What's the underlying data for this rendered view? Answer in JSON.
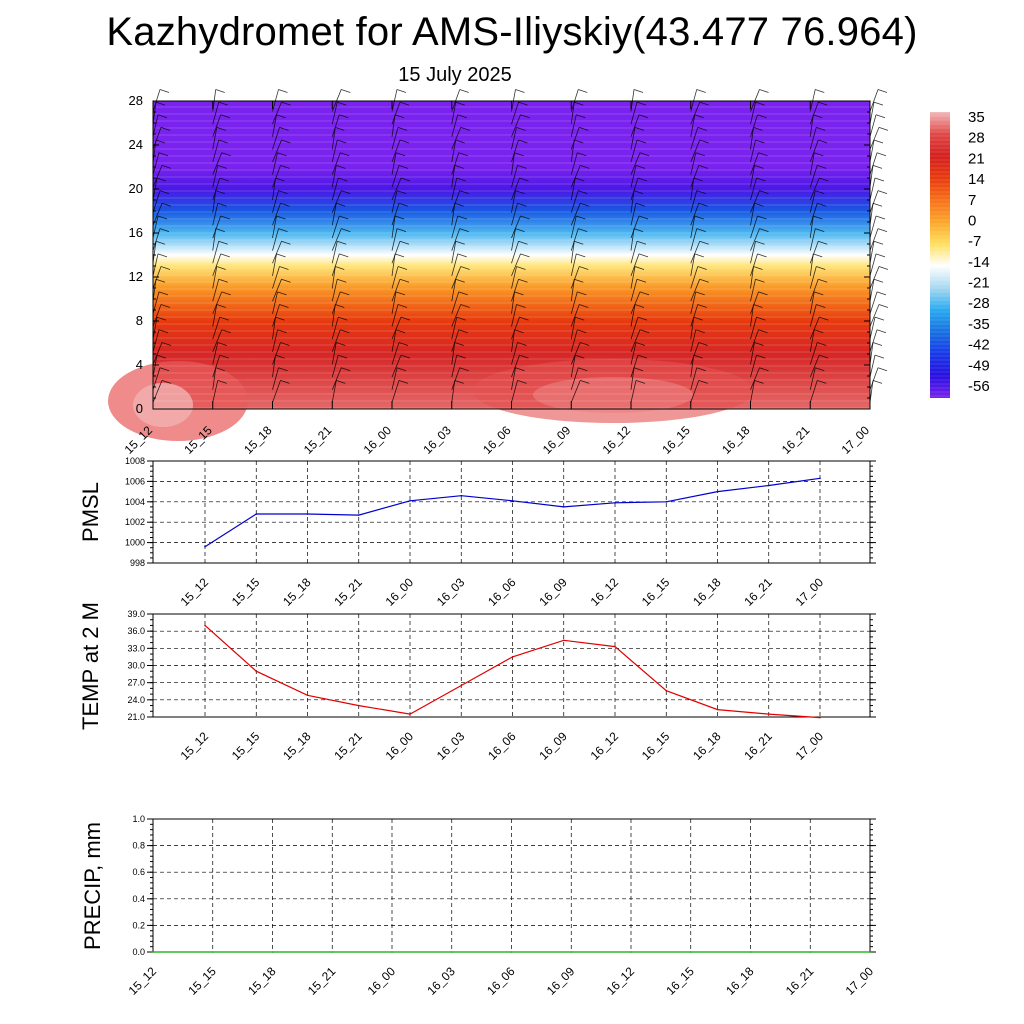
{
  "header": {
    "title": "Kazhydromet for AMS-Iliyskiy(43.477 76.964)",
    "date": "15 July 2025"
  },
  "chart_data": [
    {
      "type": "heatmap",
      "title": "",
      "xlabel": "",
      "ylabel": "",
      "x": [
        "15_12",
        "15_15",
        "15_18",
        "15_21",
        "16_00",
        "16_03",
        "16_06",
        "16_09",
        "16_12",
        "16_15",
        "16_18",
        "16_21",
        "17_00"
      ],
      "yticks": [
        0,
        4,
        8,
        12,
        16,
        20,
        24,
        28
      ],
      "ylim": [
        0,
        28
      ],
      "colorbar": {
        "labels": [
          "35",
          "28",
          "21",
          "14",
          "7",
          "0",
          "-7",
          "-14",
          "-21",
          "-28",
          "-35",
          "-42",
          "-49",
          "-56"
        ],
        "colors": [
          "#f2b8b8",
          "#e04848",
          "#d42020",
          "#e83a0e",
          "#f7701a",
          "#fba62a",
          "#ffe060",
          "#ffffff",
          "#a8d8f0",
          "#28aaf0",
          "#1870e0",
          "#1838e8",
          "#2810e0",
          "#7a22ee"
        ]
      },
      "field_levels": [
        {
          "height": 0,
          "value": 30
        },
        {
          "height": 5,
          "value": 22
        },
        {
          "height": 8,
          "value": 14
        },
        {
          "height": 11,
          "value": 2
        },
        {
          "height": 13,
          "value": -8
        },
        {
          "height": 14,
          "value": -14
        },
        {
          "height": 16,
          "value": -26
        },
        {
          "height": 18,
          "value": -38
        },
        {
          "height": 20,
          "value": -52
        },
        {
          "height": 22,
          "value": -58
        },
        {
          "height": 28,
          "value": -60
        }
      ],
      "grid": false
    },
    {
      "type": "line",
      "ylabel": "PMSL",
      "x": [
        "15_12",
        "15_15",
        "15_18",
        "15_21",
        "16_00",
        "16_03",
        "16_06",
        "16_09",
        "16_12",
        "16_15",
        "16_18",
        "16_21",
        "17_00"
      ],
      "yticks": [
        "998",
        "1000",
        "1002",
        "1004",
        "1006",
        "1008"
      ],
      "ylim": [
        998,
        1008
      ],
      "series": [
        {
          "color": "#0000cc",
          "values": [
            999.6,
            1002.8,
            1002.8,
            1002.7,
            1004.1,
            1004.6,
            1004.1,
            1003.5,
            1003.9,
            1004.0,
            1005.0,
            1005.6,
            1006.3
          ]
        }
      ],
      "grid": true
    },
    {
      "type": "line",
      "ylabel": "TEMP at 2 M",
      "x": [
        "15_12",
        "15_15",
        "15_18",
        "15_21",
        "16_00",
        "16_03",
        "16_06",
        "16_09",
        "16_12",
        "16_15",
        "16_18",
        "16_21",
        "17_00"
      ],
      "yticks": [
        "21.0",
        "24.0",
        "27.0",
        "30.0",
        "33.0",
        "36.0",
        "39.0"
      ],
      "ylim": [
        21,
        39
      ],
      "series": [
        {
          "color": "#e00000",
          "values": [
            37.0,
            29.0,
            24.8,
            23.0,
            21.5,
            26.5,
            31.5,
            34.4,
            33.3,
            25.6,
            22.3,
            21.5,
            20.9
          ]
        }
      ],
      "grid": true
    },
    {
      "type": "line",
      "ylabel": "PRECIP, mm",
      "x": [
        "15_12",
        "15_15",
        "15_18",
        "15_21",
        "16_00",
        "16_03",
        "16_06",
        "16_09",
        "16_12",
        "16_15",
        "16_18",
        "16_21",
        "17_00"
      ],
      "yticks": [
        "0.0",
        "0.2",
        "0.4",
        "0.6",
        "0.8",
        "1.0"
      ],
      "ylim": [
        0,
        1
      ],
      "series": [
        {
          "color": "#00aa00",
          "values": [
            0,
            0,
            0,
            0,
            0,
            0,
            0,
            0,
            0,
            0,
            0,
            0,
            0
          ]
        }
      ],
      "grid": true
    }
  ]
}
